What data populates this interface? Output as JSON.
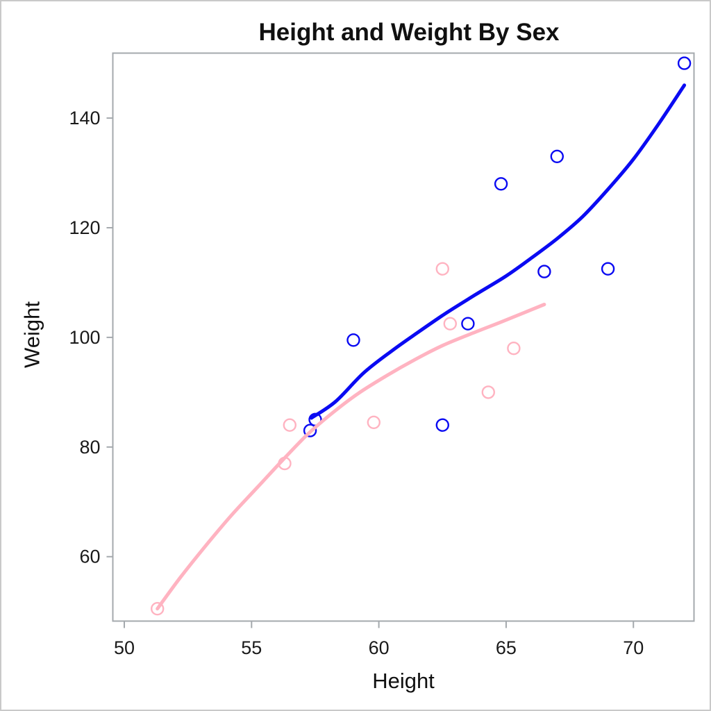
{
  "chart_data": {
    "type": "scatter",
    "title": "Height and Weight By Sex",
    "xlabel": "Height",
    "ylabel": "Weight",
    "xlim": [
      49.55,
      72.38
    ],
    "ylim": [
      48.25,
      151.85
    ],
    "xticks": [
      50,
      55,
      60,
      65,
      70
    ],
    "yticks": [
      60,
      80,
      100,
      120,
      140
    ],
    "grid": false,
    "legend": "none",
    "series": [
      {
        "name": "F",
        "marker": "open-circle",
        "color": "#ffb3c1",
        "points": [
          [
            51.3,
            50.5
          ],
          [
            56.3,
            77.0
          ],
          [
            56.5,
            84.0
          ],
          [
            59.8,
            84.5
          ],
          [
            62.5,
            112.5
          ],
          [
            62.8,
            102.5
          ],
          [
            64.3,
            90.0
          ],
          [
            65.3,
            98.0
          ],
          [
            66.5,
            112.0
          ]
        ]
      },
      {
        "name": "M",
        "marker": "open-circle",
        "color": "#0a0af2",
        "points": [
          [
            57.3,
            83.0
          ],
          [
            57.5,
            85.0
          ],
          [
            59.0,
            99.5
          ],
          [
            62.5,
            84.0
          ],
          [
            63.5,
            102.5
          ],
          [
            64.8,
            128.0
          ],
          [
            66.5,
            112.0
          ],
          [
            67.0,
            133.0
          ],
          [
            69.0,
            112.5
          ],
          [
            72.0,
            150.0
          ]
        ]
      }
    ],
    "fit_curves": [
      {
        "name": "F",
        "color": "#ffb3c1",
        "points": [
          [
            51.3,
            50.5
          ],
          [
            52.2,
            56.2
          ],
          [
            53.2,
            62.0
          ],
          [
            54.2,
            67.5
          ],
          [
            55.2,
            72.5
          ],
          [
            56.2,
            77.5
          ],
          [
            57.2,
            82.3
          ],
          [
            58.2,
            86.3
          ],
          [
            59.2,
            89.8
          ],
          [
            60.3,
            93.0
          ],
          [
            61.4,
            95.9
          ],
          [
            62.5,
            98.5
          ],
          [
            63.7,
            100.8
          ],
          [
            64.8,
            102.8
          ],
          [
            65.7,
            104.5
          ],
          [
            66.5,
            106.0
          ]
        ]
      },
      {
        "name": "M",
        "color": "#0a0af2",
        "points": [
          [
            57.35,
            85.3
          ],
          [
            58.3,
            88.3
          ],
          [
            59.4,
            93.5
          ],
          [
            60.5,
            97.5
          ],
          [
            61.5,
            100.8
          ],
          [
            62.6,
            104.3
          ],
          [
            63.8,
            107.8
          ],
          [
            65.0,
            111.2
          ],
          [
            66.0,
            114.5
          ],
          [
            67.0,
            118.0
          ],
          [
            68.0,
            122.0
          ],
          [
            69.0,
            127.0
          ],
          [
            70.0,
            132.5
          ],
          [
            71.0,
            139.0
          ],
          [
            72.0,
            146.0
          ]
        ]
      }
    ],
    "colors": {
      "frame": "#a4a9ad",
      "tick_label": "#1a1a1a",
      "text": "#101010",
      "outer_border": "#c9c9c9",
      "background": "#ffffff",
      "female_pink": "#ffb3c1",
      "male_blue": "#0a0af2"
    }
  }
}
